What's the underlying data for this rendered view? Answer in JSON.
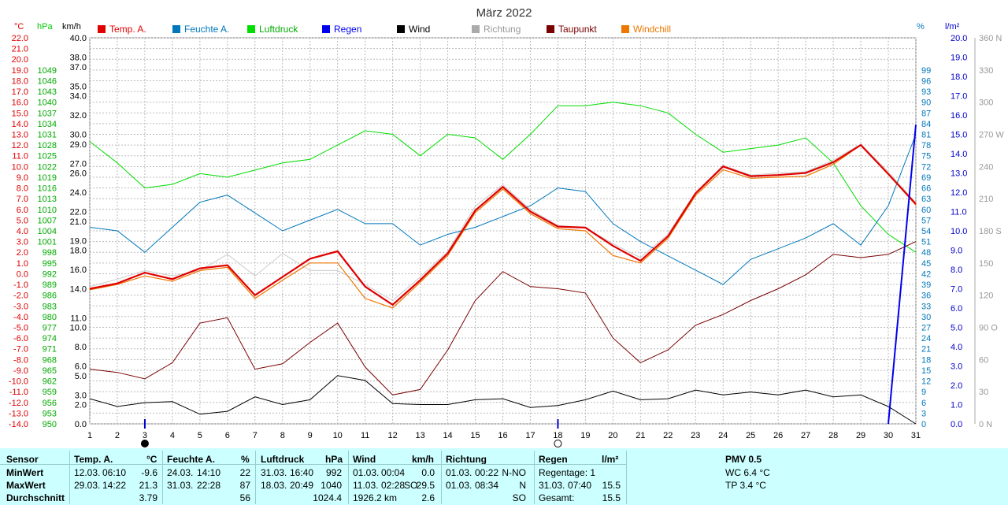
{
  "chart_data": {
    "type": "line",
    "title": "März 2022",
    "x": [
      1,
      2,
      3,
      4,
      5,
      6,
      7,
      8,
      9,
      10,
      11,
      12,
      13,
      14,
      15,
      16,
      17,
      18,
      19,
      20,
      21,
      22,
      23,
      24,
      25,
      26,
      27,
      28,
      29,
      30,
      31
    ],
    "legend": [
      {
        "name": "Temp. A.",
        "color": "#e00000"
      },
      {
        "name": "Feuchte A.",
        "color": "#0077bb"
      },
      {
        "name": "Luftdruck",
        "color": "#00dd00"
      },
      {
        "name": "Regen",
        "color": "#0000ee"
      },
      {
        "name": "Wind",
        "color": "#000000"
      },
      {
        "name": "Richtung",
        "color": "#aaaaaa"
      },
      {
        "name": "Taupunkt",
        "color": "#7a0000"
      },
      {
        "name": "Windchill",
        "color": "#ee7700"
      }
    ],
    "axes": {
      "temp": {
        "unit": "°C",
        "min": -14,
        "max": 22,
        "ticks": [
          "22.0",
          "21.0",
          "20.0",
          "19.0",
          "18.0",
          "17.0",
          "16.0",
          "15.0",
          "14.0",
          "13.0",
          "12.0",
          "11.0",
          "10.0",
          "9.0",
          "8.0",
          "7.0",
          "6.0",
          "5.0",
          "4.0",
          "3.0",
          "2.0",
          "1.0",
          "0.0",
          "-1.0",
          "-2.0",
          "-3.0",
          "-4.0",
          "-5.0",
          "-6.0",
          "-7.0",
          "-8.0",
          "-9.0",
          "-10.0",
          "-11.0",
          "-12.0",
          "-13.0",
          "-14.0"
        ]
      },
      "pressure": {
        "unit": "hPa",
        "ticks": [
          "1049",
          "1046",
          "1043",
          "1040",
          "1037",
          "1034",
          "1031",
          "1028",
          "1025",
          "1022",
          "1019",
          "1016",
          "1013",
          "1010",
          "1007",
          "1004",
          "1001",
          "998",
          "995",
          "992",
          "989",
          "986",
          "983",
          "980",
          "977",
          "974",
          "971",
          "968",
          "965",
          "962",
          "959",
          "956",
          "953",
          "950"
        ]
      },
      "wind": {
        "unit": "km/h",
        "ticks": [
          {
            "v": 40,
            "l": "40.0"
          },
          {
            "v": 38,
            "l": "38.0"
          },
          {
            "v": 37,
            "l": "37.0"
          },
          {
            "v": 35,
            "l": "35.0"
          },
          {
            "v": 34,
            "l": "34.0"
          },
          {
            "v": 32,
            "l": "32.0"
          },
          {
            "v": 30,
            "l": "30.0"
          },
          {
            "v": 29,
            "l": "29.0"
          },
          {
            "v": 27,
            "l": "27.0"
          },
          {
            "v": 26,
            "l": "26.0"
          },
          {
            "v": 24,
            "l": "24.0"
          },
          {
            "v": 22,
            "l": "22.0"
          },
          {
            "v": 21,
            "l": "21.0"
          },
          {
            "v": 19,
            "l": "19.0"
          },
          {
            "v": 18,
            "l": "18.0"
          },
          {
            "v": 16,
            "l": "16.0"
          },
          {
            "v": 14,
            "l": "14.0"
          },
          {
            "v": 11,
            "l": "11.0"
          },
          {
            "v": 10,
            "l": "10.0"
          },
          {
            "v": 8,
            "l": "8.0"
          },
          {
            "v": 6,
            "l": "6.0"
          },
          {
            "v": 5,
            "l": "5.0"
          },
          {
            "v": 3,
            "l": "3.0"
          },
          {
            "v": 2,
            "l": "2.0"
          },
          {
            "v": 0,
            "l": "0.0"
          }
        ]
      },
      "humidity": {
        "unit": "%",
        "ticks": [
          "99",
          "96",
          "93",
          "90",
          "87",
          "84",
          "81",
          "78",
          "75",
          "72",
          "69",
          "66",
          "63",
          "60",
          "57",
          "54",
          "51",
          "48",
          "45",
          "42",
          "39",
          "36",
          "33",
          "30",
          "27",
          "24",
          "21",
          "18",
          "15",
          "12",
          "9",
          "6",
          "3",
          "0"
        ]
      },
      "rain": {
        "unit": "l/m²",
        "min": 0,
        "max": 20,
        "ticks": [
          "20.0",
          "19.0",
          "18.0",
          "17.0",
          "16.0",
          "15.0",
          "14.0",
          "13.0",
          "12.0",
          "11.0",
          "10.0",
          "9.0",
          "8.0",
          "7.0",
          "6.0",
          "5.0",
          "4.0",
          "3.0",
          "2.0",
          "1.0",
          "0.0"
        ]
      },
      "direction": {
        "unit": "",
        "ticks": [
          {
            "v": 360,
            "l": "360 N"
          },
          {
            "v": 330,
            "l": "330"
          },
          {
            "v": 300,
            "l": "300"
          },
          {
            "v": 270,
            "l": "270 W"
          },
          {
            "v": 240,
            "l": "240"
          },
          {
            "v": 210,
            "l": "210"
          },
          {
            "v": 180,
            "l": "180 S"
          },
          {
            "v": 150,
            "l": "150"
          },
          {
            "v": 120,
            "l": "120"
          },
          {
            "v": 90,
            "l": "90 O"
          },
          {
            "v": 60,
            "l": "60"
          },
          {
            "v": 30,
            "l": "30"
          },
          {
            "v": 0,
            "l": "0 N"
          }
        ]
      }
    },
    "series": [
      {
        "name": "Temp. A.",
        "axis": "temp",
        "values": [
          -1.4,
          -0.9,
          0.1,
          -0.5,
          0.5,
          0.8,
          -2.0,
          -0.3,
          1.4,
          2.1,
          -1.2,
          -2.9,
          -0.6,
          1.9,
          5.9,
          8.1,
          5.8,
          4.4,
          4.3,
          2.6,
          1.2,
          3.5,
          7.5,
          10.0,
          9.1,
          9.2,
          9.4,
          10.4,
          12.0,
          9.3,
          6.5
        ]
      },
      {
        "name": "Windchill",
        "axis": "temp",
        "values": [
          -1.5,
          -1.0,
          -0.2,
          -0.7,
          0.3,
          0.6,
          -2.3,
          -0.6,
          1.0,
          1.0,
          -2.3,
          -3.2,
          -0.8,
          1.7,
          5.7,
          7.9,
          5.6,
          4.2,
          4.0,
          1.7,
          1.0,
          3.3,
          7.3,
          9.7,
          8.9,
          9.0,
          9.1,
          10.2,
          12.0,
          9.3,
          6.4
        ]
      },
      {
        "name": "Richtung",
        "axis": "temp",
        "values": [
          -1.2,
          -0.5,
          0.3,
          -0.2,
          0.3,
          1.8,
          -0.2,
          1.9,
          0.3,
          0.3,
          -1.0,
          -2.5,
          -0.3,
          2.1,
          6.3,
          8.3,
          6.0,
          4.5,
          4.3,
          2.8,
          1.5,
          3.7,
          7.6,
          10.1,
          9.2,
          9.4,
          9.5,
          10.6,
          12.1,
          9.5,
          6.6
        ]
      },
      {
        "name": "Taupunkt",
        "axis": "temp",
        "values": [
          -8.9,
          -9.2,
          -9.8,
          -8.3,
          -4.6,
          -4.1,
          -8.9,
          -8.4,
          -6.4,
          -4.6,
          -8.7,
          -11.3,
          -10.8,
          -7.1,
          -2.5,
          0.2,
          -1.2,
          -1.4,
          -1.8,
          -6.0,
          -8.3,
          -7.1,
          -4.8,
          -3.8,
          -2.5,
          -1.4,
          -0.1,
          1.8,
          1.5,
          1.8,
          3.0
        ]
      },
      {
        "name": "Feuchte A.",
        "axis": "humidity",
        "values": [
          55,
          54,
          48,
          55,
          62,
          64,
          59,
          54,
          57,
          60,
          56,
          56,
          50,
          53,
          55,
          58,
          61,
          66,
          65,
          56,
          51,
          47,
          43,
          39,
          46,
          49,
          52,
          56,
          50,
          61,
          81
        ]
      },
      {
        "name": "Luftdruck",
        "axis": "pressure",
        "values": [
          1029,
          1023,
          1016,
          1017,
          1020,
          1019,
          1021,
          1023,
          1024,
          1028,
          1032,
          1031,
          1025,
          1031,
          1030,
          1024,
          1031,
          1039,
          1039,
          1040,
          1039,
          1037,
          1031,
          1026,
          1027,
          1028,
          1030,
          1023,
          1011,
          1003,
          998
        ]
      },
      {
        "name": "Wind",
        "axis": "wind",
        "values": [
          2.6,
          1.8,
          2.2,
          2.3,
          1.0,
          1.3,
          2.8,
          2.0,
          2.5,
          5.0,
          4.5,
          2.1,
          2.0,
          2.0,
          2.5,
          2.6,
          1.7,
          1.9,
          2.5,
          3.4,
          2.5,
          2.6,
          3.5,
          3.0,
          3.3,
          3.0,
          3.5,
          2.8,
          3.0,
          1.8,
          0.0
        ]
      },
      {
        "name": "Regen",
        "axis": "rain",
        "values": [
          0,
          0,
          0,
          0,
          0,
          0,
          0,
          0,
          0,
          0,
          0,
          0,
          0,
          0,
          0,
          0,
          0,
          0,
          0,
          0,
          0,
          0,
          0,
          0,
          0,
          0,
          0,
          0,
          0,
          0,
          15.5
        ]
      }
    ],
    "moon_markers": [
      {
        "day": 3,
        "phase": "new"
      },
      {
        "day": 18,
        "phase": "full"
      }
    ]
  },
  "stats": {
    "headers": {
      "sensor": "Sensor",
      "temp": "Temp. A.",
      "temp_u": "°C",
      "hum": "Feuchte A.",
      "hum_u": "%",
      "press": "Luftdruck",
      "press_u": "hPa",
      "wind": "Wind",
      "wind_u": "km/h",
      "dir": "Richtung",
      "rain": "Regen",
      "rain_u": "l/m²",
      "pmv": "PMV 0.5"
    },
    "rows": {
      "min": "MinWert",
      "max": "MaxWert",
      "avg": "Durchschnitt"
    },
    "temp": {
      "min_date": "12.03.",
      "min_time": "06:10",
      "min": "-9.6",
      "max_date": "29.03.",
      "max_time": "14:22",
      "max": "21.3",
      "avg": "3.79"
    },
    "hum": {
      "min_date": "24.03.",
      "min_time": "14:10",
      "min": "22",
      "max_date": "31.03.",
      "max_time": "22:28",
      "max": "87",
      "avg": "56"
    },
    "press": {
      "min_date": "31.03.",
      "min_time": "16:40",
      "min": "992",
      "max_date": "18.03.",
      "max_time": "20:49",
      "max": "1040",
      "avg": "1024.4"
    },
    "wind": {
      "min_date": "01.03.",
      "min_time": "00:04",
      "min": "0.0",
      "max_date": "11.03.",
      "max_time": "02:28",
      "max_dir": "SO",
      "max": "29.5",
      "dist": "1926.2 km",
      "avg": "2.6"
    },
    "dir": {
      "min_date": "01.03.",
      "min_time": "00:22",
      "min": "N-NO",
      "max_date": "01.03.",
      "max_time": "08:34",
      "max": "N",
      "avg": "SO"
    },
    "rain": {
      "days_label": "Regentage: 1",
      "max_date": "31.03.",
      "max_time": "07:40",
      "max": "15.5",
      "total_label": "Gesamt:",
      "total": "15.5"
    },
    "pmv": {
      "wc": "WC 6.4 °C",
      "tp": "TP 3.4 °C"
    }
  }
}
